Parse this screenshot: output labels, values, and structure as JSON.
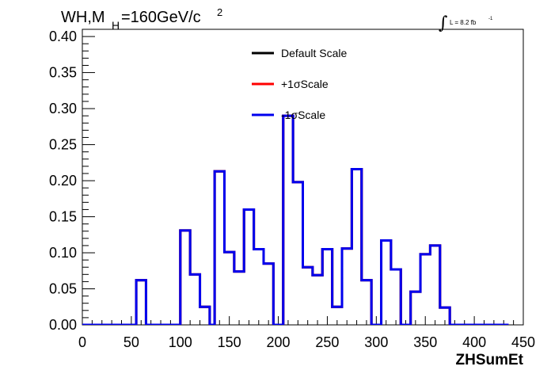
{
  "chart_data": {
    "type": "line",
    "style": "step-histogram",
    "title_main": "WH,M",
    "title_sub": "H",
    "title_value": "=160GeV/c",
    "title_sup": "2",
    "lumi_integral": "∫",
    "lumi_text": "L = 8.2 fb",
    "lumi_sup": "-1",
    "xlabel": "ZHSumEt",
    "ylabel": "",
    "xlim": [
      0,
      450
    ],
    "ylim": [
      0,
      0.41
    ],
    "grid": false,
    "legend_position": "top-center",
    "x_ticks": [
      0,
      50,
      100,
      150,
      200,
      250,
      300,
      350,
      400,
      450
    ],
    "x_tick_labels": [
      "0",
      "50",
      "100",
      "150",
      "200",
      "250",
      "300",
      "350",
      "400",
      "450"
    ],
    "y_ticks": [
      0,
      0.05,
      0.1,
      0.15,
      0.2,
      0.25,
      0.3,
      0.35,
      0.4
    ],
    "y_tick_labels": [
      "0.00",
      "0.05",
      "0.10",
      "0.15",
      "0.20",
      "0.25",
      "0.30",
      "0.35",
      "0.40"
    ],
    "bin_edges": [
      0,
      10,
      20,
      30,
      40,
      50,
      55,
      65,
      75,
      85,
      90,
      100,
      110,
      120,
      130,
      135,
      145,
      155,
      165,
      175,
      185,
      195,
      205,
      215,
      225,
      235,
      245,
      255,
      265,
      275,
      285,
      295,
      305,
      315,
      325,
      335,
      345,
      355,
      365,
      375,
      385,
      395,
      405,
      415,
      425,
      435,
      450
    ],
    "series": [
      {
        "name": "Default Scale",
        "color": "#000000",
        "values": [
          0,
          0,
          0,
          0,
          0,
          0,
          0.062,
          0,
          0,
          0,
          0,
          0.131,
          0.07,
          0.025,
          0,
          0.213,
          0.101,
          0.074,
          0.16,
          0.105,
          0.085,
          0,
          0.29,
          0.198,
          0.08,
          0.069,
          0.105,
          0.025,
          0.106,
          0.216,
          0.062,
          0,
          0.117,
          0.077,
          0,
          0.046,
          0.098,
          0.11,
          0.024,
          0,
          0,
          0,
          0,
          0,
          0
        ]
      },
      {
        "name": "+1σScale",
        "color": "#ff0000",
        "values": [
          0,
          0,
          0,
          0,
          0,
          0,
          0.062,
          0,
          0,
          0,
          0,
          0.131,
          0.07,
          0.025,
          0,
          0.213,
          0.101,
          0.074,
          0.16,
          0.105,
          0.085,
          0,
          0.29,
          0.198,
          0.08,
          0.069,
          0.105,
          0.025,
          0.106,
          0.216,
          0.062,
          0,
          0.117,
          0.077,
          0,
          0.046,
          0.098,
          0.11,
          0.024,
          0,
          0,
          0,
          0,
          0,
          0
        ]
      },
      {
        "name": "-1σScale",
        "color": "#0000ee",
        "values": [
          0,
          0,
          0,
          0,
          0,
          0,
          0.062,
          0,
          0,
          0,
          0,
          0.131,
          0.07,
          0.025,
          0,
          0.213,
          0.101,
          0.074,
          0.16,
          0.105,
          0.085,
          0,
          0.29,
          0.198,
          0.08,
          0.069,
          0.105,
          0.025,
          0.106,
          0.216,
          0.062,
          0,
          0.117,
          0.077,
          0,
          0.046,
          0.098,
          0.11,
          0.024,
          0,
          0,
          0,
          0,
          0,
          0
        ]
      }
    ]
  }
}
